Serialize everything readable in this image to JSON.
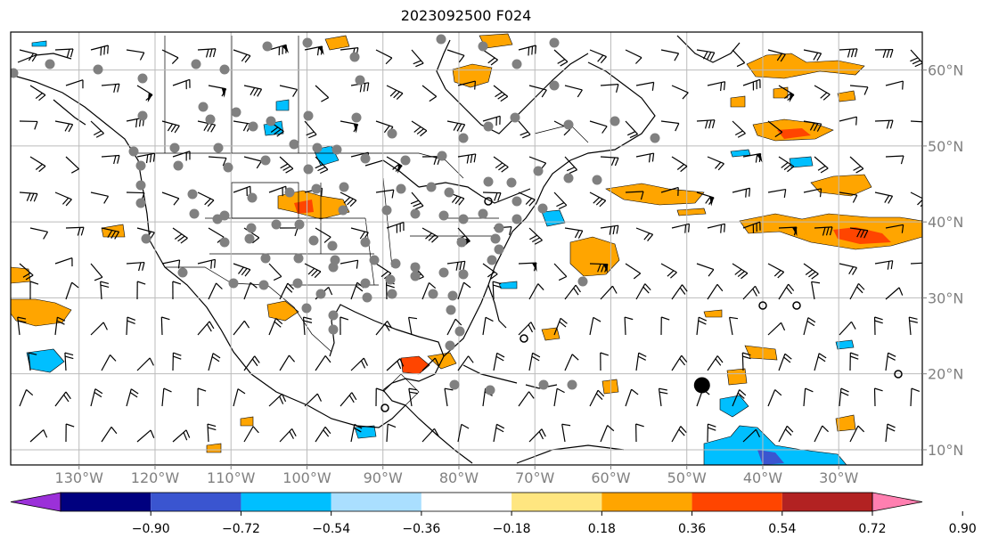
{
  "title": "2023092500 F024",
  "map": {
    "lon_range": [
      -139,
      -19
    ],
    "lat_range": [
      8,
      65
    ],
    "lon_ticks": [
      {
        "value": -130,
        "label": "130°W"
      },
      {
        "value": -120,
        "label": "120°W"
      },
      {
        "value": -110,
        "label": "110°W"
      },
      {
        "value": -100,
        "label": "100°W"
      },
      {
        "value": -90,
        "label": "90°W"
      },
      {
        "value": -80,
        "label": "80°W"
      },
      {
        "value": -70,
        "label": "70°W"
      },
      {
        "value": -60,
        "label": "60°W"
      },
      {
        "value": -50,
        "label": "50°W"
      },
      {
        "value": -40,
        "label": "40°W"
      },
      {
        "value": -30,
        "label": "30°W"
      }
    ],
    "lat_ticks": [
      {
        "value": 60,
        "label": "60°N"
      },
      {
        "value": 50,
        "label": "50°N"
      },
      {
        "value": 40,
        "label": "40°N"
      },
      {
        "value": 30,
        "label": "30°N"
      },
      {
        "value": 20,
        "label": "20°N"
      },
      {
        "value": 10,
        "label": "10°N"
      }
    ],
    "grid": true,
    "label_color": "#808080",
    "station_color": "#808080",
    "marker": {
      "lon": -48,
      "lat": 18.5
    }
  },
  "colorbar": {
    "ticks": [
      "−0.90",
      "−0.72",
      "−0.54",
      "−0.36",
      "−0.18",
      "0.18",
      "0.36",
      "0.54",
      "0.72",
      "0.90"
    ],
    "colors": [
      "#9b30d9",
      "#00007f",
      "#3a55d0",
      "#00bfff",
      "#aadfff",
      "#ffffff",
      "#ffe680",
      "#ffa500",
      "#ff4500",
      "#b22222",
      "#ff7fb0"
    ],
    "extend": "both"
  }
}
